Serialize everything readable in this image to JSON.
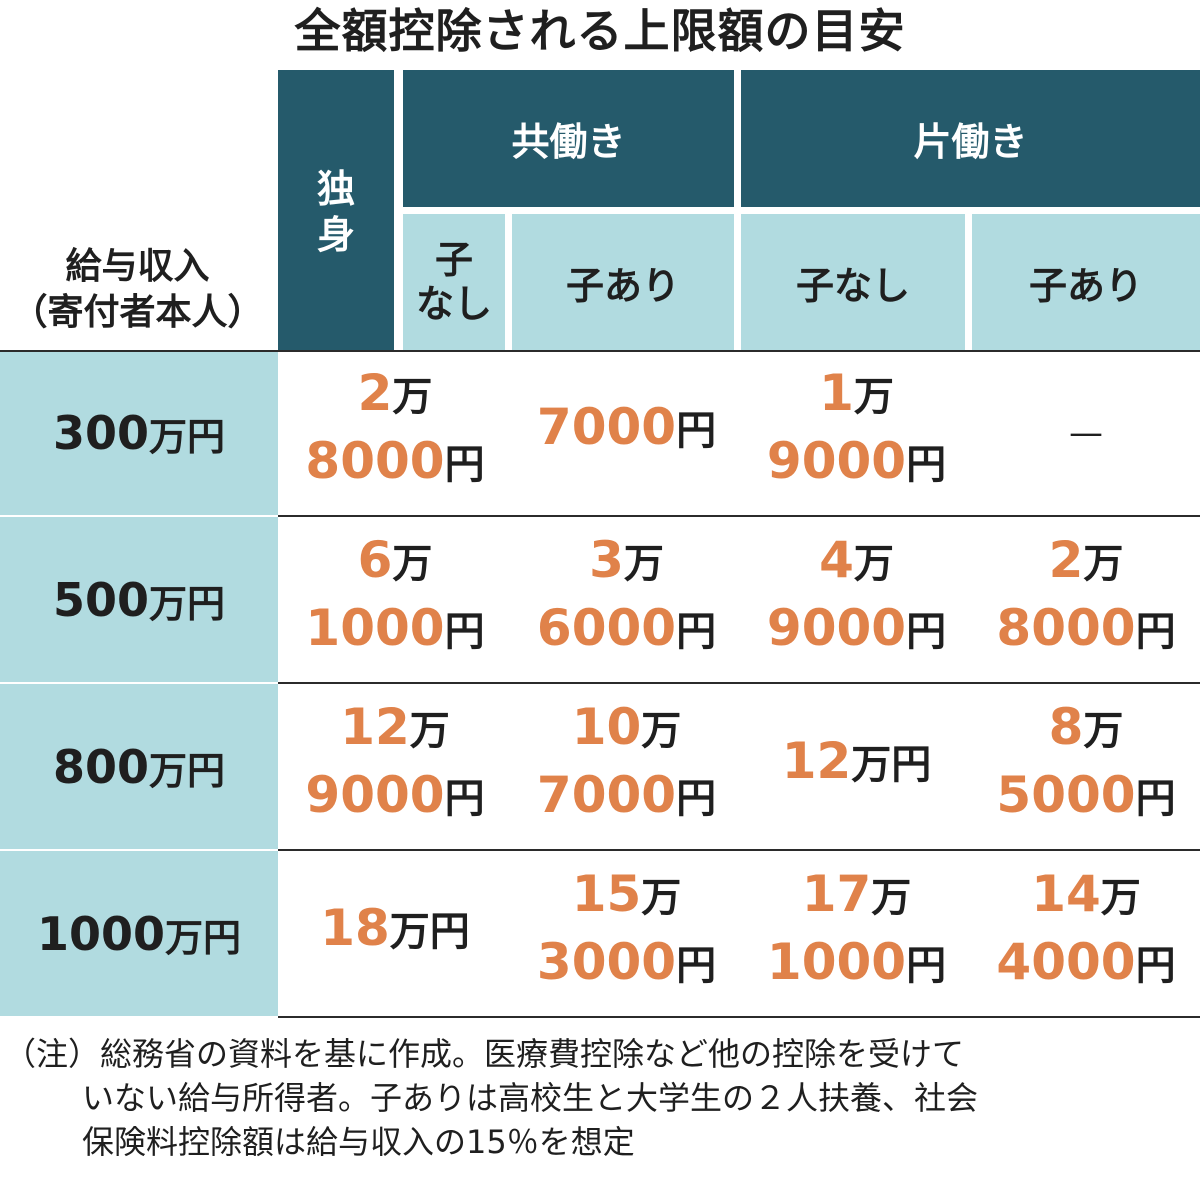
{
  "title": "全額控除される上限額の目安",
  "header": {
    "income_label_line1": "給与収入",
    "income_label_line2": "（寄付者本人）",
    "single": "独身",
    "dual_income": "共働き",
    "single_income": "片働き",
    "no_child_short_line1": "子",
    "no_child_short_line2": "なし",
    "with_child": "子あり",
    "no_child": "子なし"
  },
  "chart_data": {
    "type": "table",
    "title": "全額控除される上限額の目安",
    "columns": [
      "給与収入（寄付者本人）",
      "独身",
      "共働き・子なし",
      "共働き・子あり",
      "片働き・子なし",
      "片働き・子あり"
    ],
    "rows": [
      {
        "income": "300万円",
        "cells": [
          {
            "l1": "2",
            "u1": "万",
            "l2": "8000",
            "u2": "円"
          },
          {
            "l1": "7000",
            "u1": "円",
            "l2": "",
            "u2": ""
          },
          {
            "l1": "1",
            "u1": "万",
            "l2": "9000",
            "u2": "円"
          },
          {
            "dash": "—"
          }
        ]
      },
      {
        "income": "500万円",
        "cells": [
          {
            "l1": "6",
            "u1": "万",
            "l2": "1000",
            "u2": "円"
          },
          {
            "l1": "3",
            "u1": "万",
            "l2": "6000",
            "u2": "円"
          },
          {
            "l1": "4",
            "u1": "万",
            "l2": "9000",
            "u2": "円"
          },
          {
            "l1": "2",
            "u1": "万",
            "l2": "8000",
            "u2": "円"
          }
        ]
      },
      {
        "income": "800万円",
        "cells": [
          {
            "l1": "12",
            "u1": "万",
            "l2": "9000",
            "u2": "円"
          },
          {
            "l1": "10",
            "u1": "万",
            "l2": "7000",
            "u2": "円"
          },
          {
            "l1": "12",
            "u1": "万円",
            "l2": "",
            "u2": ""
          },
          {
            "l1": "8",
            "u1": "万",
            "l2": "5000",
            "u2": "円"
          }
        ]
      },
      {
        "income": "1000万円",
        "cells": [
          {
            "l1": "18",
            "u1": "万円",
            "l2": "",
            "u2": ""
          },
          {
            "l1": "15",
            "u1": "万",
            "l2": "3000",
            "u2": "円"
          },
          {
            "l1": "17",
            "u1": "万",
            "l2": "1000",
            "u2": "円"
          },
          {
            "l1": "14",
            "u1": "万",
            "l2": "4000",
            "u2": "円"
          }
        ]
      }
    ],
    "values_yen": [
      [
        28000,
        7000,
        19000,
        null
      ],
      [
        61000,
        36000,
        49000,
        28000
      ],
      [
        129000,
        107000,
        120000,
        85000
      ],
      [
        180000,
        153000,
        171000,
        144000
      ]
    ]
  },
  "row_labels": [
    {
      "num": "300",
      "unit": "万円"
    },
    {
      "num": "500",
      "unit": "万円"
    },
    {
      "num": "800",
      "unit": "万円"
    },
    {
      "num": "1000",
      "unit": "万円"
    }
  ],
  "note": {
    "line1": "（注）総務省の資料を基に作成。医療費控除など他の控除を受けて",
    "line2": "いない給与所得者。子ありは高校生と大学生の２人扶養、社会",
    "line3": "保険料控除額は給与収入の15％を想定"
  },
  "colors": {
    "header_dark": "#255a6b",
    "header_light": "#b1dbe0",
    "value_orange": "#e0824a",
    "text": "#1f1f1f"
  }
}
